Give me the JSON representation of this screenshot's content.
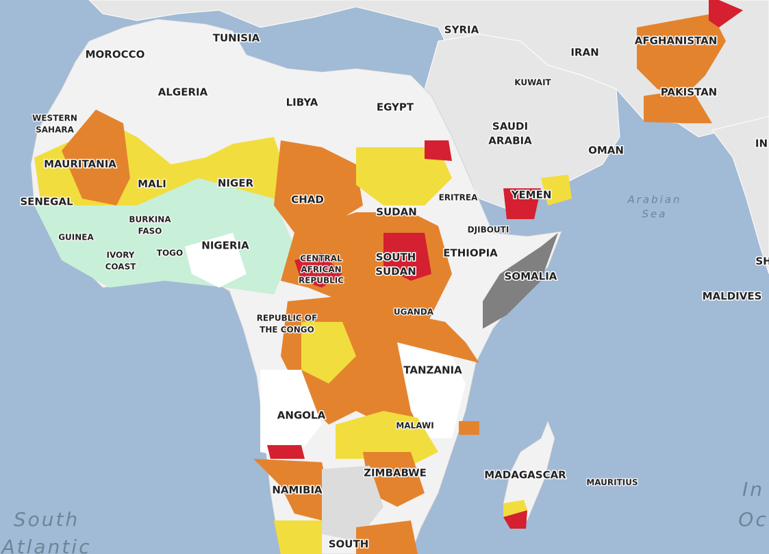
{
  "labels": [
    "MOROCCO",
    "TUNISIA",
    "SYRIA",
    "IRAN",
    "AFGHANISTAN",
    "KUWAIT",
    "PAKISTAN",
    "ALGERIA",
    "LIBYA",
    "EGYPT",
    [
      "SAUDI",
      "ARABIA"
    ],
    [
      "WESTERN",
      "SAHARA"
    ],
    "OMAN",
    "IN",
    "MAURITANIA",
    "MALI",
    "NIGER",
    "CHAD",
    "SUDAN",
    "ERITREA",
    "YEMEN",
    [
      "Arabian",
      "Sea"
    ],
    "SENEGAL",
    [
      "BURKINA",
      "FASO"
    ],
    "GUINEA",
    "NIGERIA",
    "DJIBOUTI",
    "ETHIOPIA",
    [
      "SOUTH",
      "SUDAN"
    ],
    [
      "IVORY",
      "COAST"
    ],
    "TOGO",
    [
      "CENTRAL",
      "AFRICAN",
      "REPUBLIC"
    ],
    "SOMALIA",
    "MALDIVES",
    "SH",
    [
      "REPUBLIC OF",
      "THE CONGO"
    ],
    "UGANDA",
    "TANZANIA",
    "ANGOLA",
    "MALAWI",
    "MADAGASCAR",
    "MAURITIUS",
    "NAMIBIA",
    "ZIMBABWE",
    "SOUTH",
    [
      "South",
      "Atlantic"
    ],
    [
      "In",
      "Oc"
    ]
  ]
}
